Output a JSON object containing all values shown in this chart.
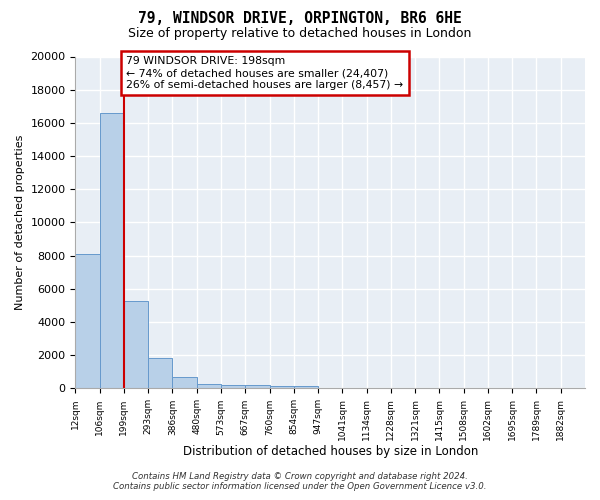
{
  "title1": "79, WINDSOR DRIVE, ORPINGTON, BR6 6HE",
  "title2": "Size of property relative to detached houses in London",
  "xlabel": "Distribution of detached houses by size in London",
  "ylabel": "Number of detached properties",
  "xtick_labels": [
    "12sqm",
    "106sqm",
    "199sqm",
    "293sqm",
    "386sqm",
    "480sqm",
    "573sqm",
    "667sqm",
    "760sqm",
    "854sqm",
    "947sqm",
    "1041sqm",
    "1134sqm",
    "1228sqm",
    "1321sqm",
    "1415sqm",
    "1508sqm",
    "1602sqm",
    "1695sqm",
    "1789sqm",
    "1882sqm"
  ],
  "bar_values": [
    8100,
    16600,
    5300,
    1850,
    700,
    300,
    220,
    200,
    170,
    130,
    50,
    30,
    20,
    15,
    10,
    8,
    6,
    5,
    4,
    3,
    2
  ],
  "bar_color": "#b8d0e8",
  "bar_edge_color": "#6699cc",
  "background_color": "#e8eef5",
  "grid_color": "#ffffff",
  "red_line_x": 2,
  "annotation_line1": "79 WINDSOR DRIVE: 198sqm",
  "annotation_line2": "← 74% of detached houses are smaller (24,407)",
  "annotation_line3": "26% of semi-detached houses are larger (8,457) →",
  "annotation_box_facecolor": "#ffffff",
  "annotation_box_edgecolor": "#cc0000",
  "ylim_max": 20000,
  "yticks": [
    0,
    2000,
    4000,
    6000,
    8000,
    10000,
    12000,
    14000,
    16000,
    18000,
    20000
  ],
  "footer1": "Contains HM Land Registry data © Crown copyright and database right 2024.",
  "footer2": "Contains public sector information licensed under the Open Government Licence v3.0."
}
